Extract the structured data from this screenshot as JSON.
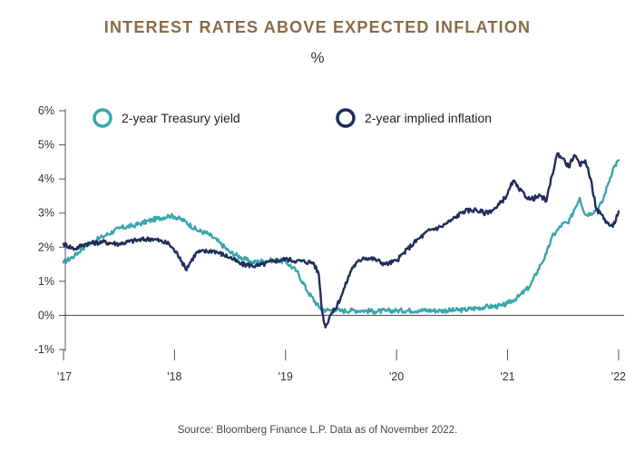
{
  "title": "INTEREST RATES ABOVE EXPECTED INFLATION",
  "subtitle": "%",
  "source": "Source: Bloomberg Finance L.P. Data as of November 2022.",
  "chart_data": {
    "type": "line",
    "title": "INTEREST RATES ABOVE EXPECTED INFLATION",
    "ylabel": "%",
    "xlabel": "",
    "ylim": [
      -1,
      6
    ],
    "xlim": [
      2017.0,
      2022.05
    ],
    "yticks": [
      {
        "value": 6,
        "label": "6%"
      },
      {
        "value": 5,
        "label": "5%"
      },
      {
        "value": 4,
        "label": "4%"
      },
      {
        "value": 3,
        "label": "3%"
      },
      {
        "value": 2,
        "label": "2%"
      },
      {
        "value": 1,
        "label": "1%"
      },
      {
        "value": 0,
        "label": "0%"
      },
      {
        "value": -1,
        "label": "-1%"
      }
    ],
    "xticks": [
      {
        "value": 2017,
        "label": "'17"
      },
      {
        "value": 2018,
        "label": "'18"
      },
      {
        "value": 2019,
        "label": "'19"
      },
      {
        "value": 2020,
        "label": "'20"
      },
      {
        "value": 2021,
        "label": "'21"
      },
      {
        "value": 2022,
        "label": "'22"
      }
    ],
    "legend_position": "top",
    "series": [
      {
        "name": "2-year Treasury yield",
        "color": "#3aa5ad",
        "x": [
          2017.0,
          2017.1,
          2017.2,
          2017.35,
          2017.5,
          2017.65,
          2017.8,
          2017.95,
          2018.0,
          2018.1,
          2018.2,
          2018.3,
          2018.4,
          2018.5,
          2018.6,
          2018.7,
          2018.8,
          2018.9,
          2019.0,
          2019.1,
          2019.2,
          2019.3,
          2019.33,
          2019.36,
          2019.4,
          2019.45,
          2019.5,
          2019.6,
          2019.7,
          2019.8,
          2019.9,
          2020.0,
          2020.2,
          2020.4,
          2020.6,
          2020.8,
          2020.95,
          2021.0,
          2021.1,
          2021.2,
          2021.3,
          2021.35,
          2021.4,
          2021.45,
          2021.5,
          2021.55,
          2021.6,
          2021.65,
          2021.7,
          2021.75,
          2021.8,
          2021.85,
          2021.9,
          2021.95,
          2022.0
        ],
        "values": [
          1.55,
          1.75,
          2.05,
          2.3,
          2.55,
          2.65,
          2.8,
          2.92,
          2.9,
          2.75,
          2.5,
          2.4,
          2.15,
          1.85,
          1.7,
          1.55,
          1.6,
          1.62,
          1.58,
          1.3,
          0.7,
          0.25,
          0.18,
          0.16,
          0.15,
          0.17,
          0.13,
          0.15,
          0.14,
          0.12,
          0.13,
          0.14,
          0.15,
          0.14,
          0.16,
          0.25,
          0.28,
          0.35,
          0.55,
          0.85,
          1.5,
          1.8,
          2.3,
          2.5,
          2.7,
          2.7,
          3.1,
          3.45,
          2.95,
          3.0,
          3.1,
          3.3,
          3.8,
          4.3,
          4.55
        ]
      },
      {
        "name": "2-year implied inflation",
        "color": "#1f2d5a",
        "x": [
          2017.0,
          2017.1,
          2017.2,
          2017.35,
          2017.5,
          2017.65,
          2017.8,
          2017.95,
          2018.05,
          2018.1,
          2018.2,
          2018.35,
          2018.5,
          2018.6,
          2018.75,
          2018.9,
          2019.0,
          2019.1,
          2019.25,
          2019.3,
          2019.33,
          2019.36,
          2019.4,
          2019.45,
          2019.5,
          2019.6,
          2019.7,
          2019.8,
          2019.9,
          2020.0,
          2020.1,
          2020.2,
          2020.3,
          2020.4,
          2020.5,
          2020.6,
          2020.7,
          2020.8,
          2020.9,
          2021.0,
          2021.05,
          2021.1,
          2021.2,
          2021.3,
          2021.35,
          2021.4,
          2021.45,
          2021.5,
          2021.55,
          2021.6,
          2021.65,
          2021.7,
          2021.75,
          2021.8,
          2021.85,
          2021.9,
          2021.95,
          2022.0
        ],
        "values": [
          2.1,
          1.95,
          2.1,
          2.15,
          2.1,
          2.2,
          2.25,
          2.1,
          1.7,
          1.35,
          1.85,
          1.9,
          1.7,
          1.5,
          1.45,
          1.6,
          1.65,
          1.6,
          1.55,
          1.2,
          0.1,
          -0.35,
          0.0,
          0.2,
          0.55,
          1.4,
          1.7,
          1.65,
          1.5,
          1.6,
          1.95,
          2.25,
          2.5,
          2.6,
          2.8,
          3.05,
          3.1,
          3.0,
          3.15,
          3.55,
          3.95,
          3.7,
          3.4,
          3.5,
          3.35,
          4.1,
          4.75,
          4.6,
          4.35,
          4.7,
          4.4,
          4.55,
          4.0,
          3.1,
          2.95,
          2.7,
          2.6,
          3.05
        ]
      }
    ]
  }
}
